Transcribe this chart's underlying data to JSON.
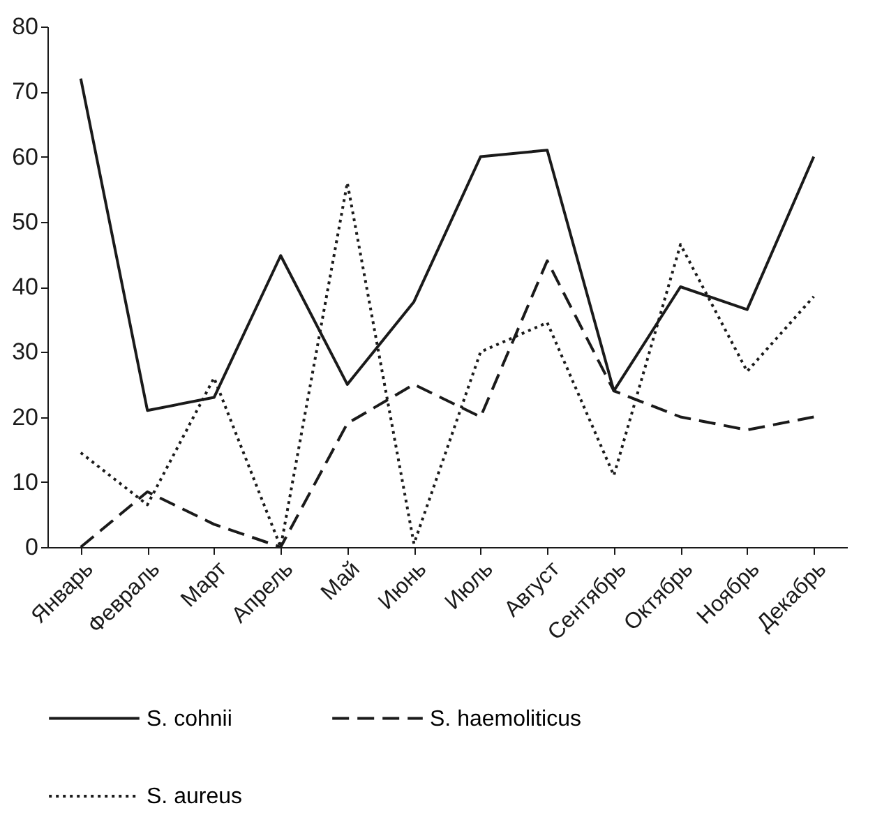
{
  "chart_data": {
    "type": "line",
    "categories": [
      "Январь",
      "Февраль",
      "Март",
      "Апрель",
      "Май",
      "Июнь",
      "Июль",
      "Август",
      "Сентябрь",
      "Октябрь",
      "Ноябрь",
      "Декабрь"
    ],
    "series": [
      {
        "name": "S. cohnii",
        "color": "#1a1a1a",
        "line_style": "solid",
        "values": [
          72,
          21,
          23,
          44.8,
          25,
          37.7,
          60,
          61,
          24,
          40,
          36.5,
          60
        ]
      },
      {
        "name": "S. haemoliticus",
        "color": "#1a1a1a",
        "line_style": "dashed",
        "values": [
          0,
          8.5,
          3.5,
          0,
          19,
          25,
          20,
          44,
          24,
          20,
          18,
          20
        ]
      },
      {
        "name": "S. aureus",
        "color": "#1a1a1a",
        "line_style": "dotted",
        "values": [
          14.5,
          6.5,
          26,
          0,
          56,
          0.5,
          30,
          34.5,
          11,
          46.5,
          27,
          38.5
        ]
      }
    ],
    "ylim": [
      0,
      80
    ],
    "yticks": [
      0,
      10,
      20,
      30,
      40,
      50,
      60,
      70,
      80
    ],
    "grid": false,
    "legend": "bottom",
    "marker": "none"
  }
}
